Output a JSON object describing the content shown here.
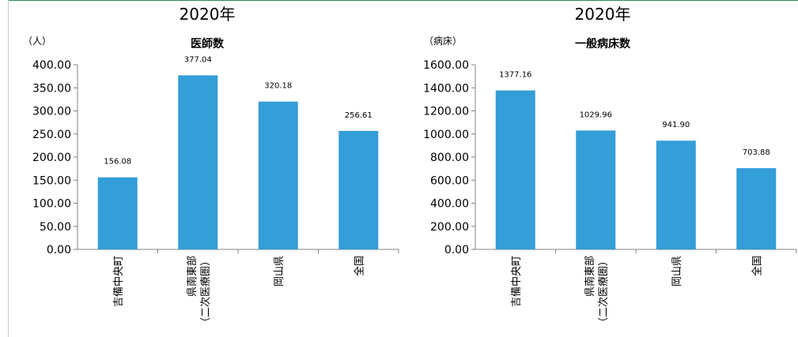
{
  "chart_data": [
    {
      "type": "bar",
      "year_label": "2020年",
      "title": "医師数",
      "unit_label": "（人）",
      "categories": [
        "吉備中央町",
        "県南東部（二次医療圏）",
        "岡山県",
        "全国"
      ],
      "category_lines": [
        [
          "吉備中央町"
        ],
        [
          "県南東部",
          "（二次医療圏）"
        ],
        [
          "岡山県"
        ],
        [
          "全国"
        ]
      ],
      "values": [
        156.08,
        377.04,
        320.18,
        256.61
      ],
      "data_labels": [
        "156.08",
        "377.04",
        "320.18",
        "256.61"
      ],
      "ylim": [
        0,
        400
      ],
      "yticks": [
        0,
        50,
        100,
        150,
        200,
        250,
        300,
        350,
        400
      ],
      "ytick_labels": [
        "0.00",
        "50.00",
        "100.00",
        "150.00",
        "200.00",
        "250.00",
        "300.00",
        "350.00",
        "400.00"
      ],
      "bar_color": "#339ed8",
      "grid": false,
      "legend": "none"
    },
    {
      "type": "bar",
      "year_label": "2020年",
      "title": "一般病床数",
      "unit_label": "（病床）",
      "categories": [
        "吉備中央町",
        "県南東部（二次医療圏）",
        "岡山県",
        "全国"
      ],
      "category_lines": [
        [
          "吉備中央町"
        ],
        [
          "県南東部",
          "（二次医療圏）"
        ],
        [
          "岡山県"
        ],
        [
          "全国"
        ]
      ],
      "values": [
        1377.16,
        1029.96,
        941.9,
        703.88
      ],
      "data_labels": [
        "1377.16",
        "1029.96",
        "941.90",
        "703.88"
      ],
      "ylim": [
        0,
        1600
      ],
      "yticks": [
        0,
        200,
        400,
        600,
        800,
        1000,
        1200,
        1400,
        1600
      ],
      "ytick_labels": [
        "0.00",
        "200.00",
        "400.00",
        "600.00",
        "800.00",
        "1000.00",
        "1200.00",
        "1400.00",
        "1600.00"
      ],
      "bar_color": "#339ed8",
      "grid": false,
      "legend": "none"
    }
  ]
}
